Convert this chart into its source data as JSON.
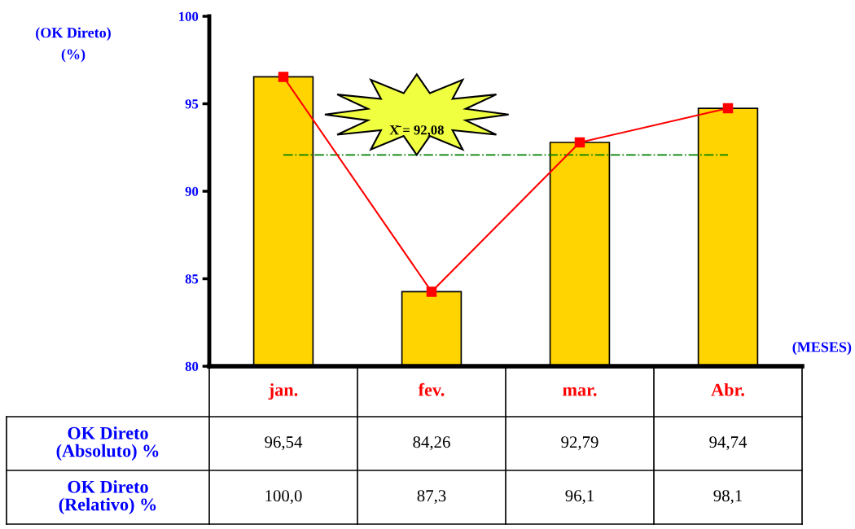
{
  "chart_data": {
    "type": "bar",
    "categories": [
      "jan.",
      "fev.",
      "mar.",
      "Abr."
    ],
    "series": [
      {
        "color": "#ffd400",
        "values": [
          96.54,
          84.26,
          92.79,
          94.74
        ],
        "value_labels": [
          "96,54",
          "84,26",
          "92,79",
          "94,74"
        ]
      },
      {
        "type": "line",
        "color": "#ff0000",
        "marker": "square",
        "values": [
          96.54,
          84.26,
          92.79,
          94.74
        ]
      }
    ],
    "ylabel": "(OK Direto)\n(%)",
    "xlabel": "(MESES)",
    "ylim": [
      80,
      100
    ],
    "yticks": [
      80,
      85,
      90,
      95,
      100
    ],
    "ref_lines": [
      {
        "axis": "y",
        "value": 92.08,
        "label": "X̄ = 92,08",
        "color": "#008000",
        "line_style": "dashdot"
      }
    ],
    "annotations": [
      "OK Direto\n(Absoluto) %",
      "OK Direto\n(Relativo) %",
      "100,0",
      "87,3",
      "96,1",
      "98,1"
    ],
    "grid": false,
    "legend": false
  }
}
